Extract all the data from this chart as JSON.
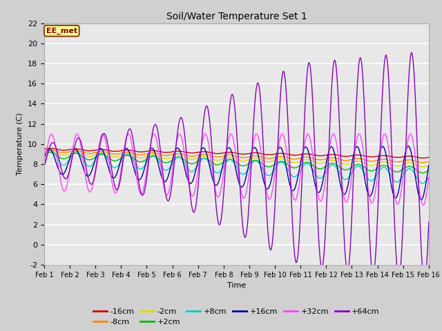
{
  "title": "Soil/Water Temperature Set 1",
  "xlabel": "Time",
  "ylabel": "Temperature (C)",
  "ylim": [
    -2,
    22
  ],
  "xlim": [
    0,
    15
  ],
  "fig_bg": "#d0d0d0",
  "plot_bg": "#e8e8e8",
  "annotation_text": "EE_met",
  "annotation_bg": "#ffff99",
  "annotation_border": "#8b4513",
  "series": {
    "m16cm": {
      "label": "-16cm",
      "color": "#cc0000"
    },
    "m8cm": {
      "label": "-8cm",
      "color": "#ff8800"
    },
    "m2cm": {
      "label": "-2cm",
      "color": "#dddd00"
    },
    "p2cm": {
      "label": "+2cm",
      "color": "#00bb00"
    },
    "p8cm": {
      "label": "+8cm",
      "color": "#00cccc"
    },
    "p16cm": {
      "label": "+16cm",
      "color": "#000099"
    },
    "p32cm": {
      "label": "+32cm",
      "color": "#ff44ff"
    },
    "p64cm": {
      "label": "+64cm",
      "color": "#8800bb"
    }
  },
  "xtick_labels": [
    "Feb 1",
    "Feb 2",
    "Feb 3",
    "Feb 4",
    "Feb 5",
    "Feb 6",
    "Feb 7",
    "Feb 8",
    "Feb 9",
    "Feb 10",
    "Feb 11",
    "Feb 12",
    "Feb 13",
    "Feb 14",
    "Feb 15",
    "Feb 16"
  ],
  "ytick_vals": [
    -2,
    0,
    2,
    4,
    6,
    8,
    10,
    12,
    14,
    16,
    18,
    20,
    22
  ]
}
